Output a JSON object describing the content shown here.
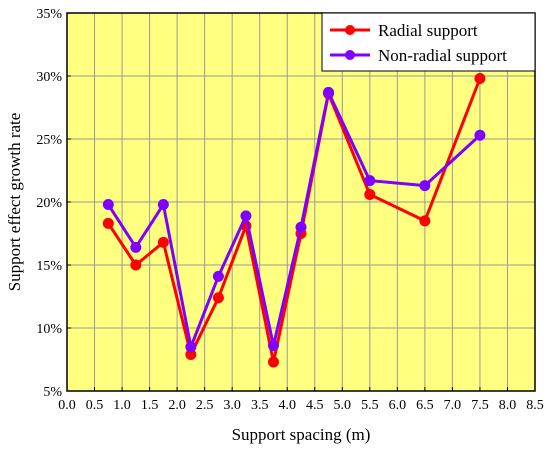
{
  "chart_data": {
    "type": "line",
    "xlabel": "Support spacing (m)",
    "ylabel": "Support effect growth rate",
    "xlim": [
      0.0,
      8.5
    ],
    "ylim": [
      5,
      35
    ],
    "xticks": [
      "0.0",
      "0.5",
      "1.0",
      "1.5",
      "2.0",
      "2.5",
      "3.0",
      "3.5",
      "4.0",
      "4.5",
      "5.0",
      "5.5",
      "6.0",
      "6.5",
      "7.0",
      "7.5",
      "8.0",
      "8.5"
    ],
    "yticks": [
      "5%",
      "10%",
      "15%",
      "20%",
      "25%",
      "30%",
      "35%"
    ],
    "grid": true,
    "legend_position": "top-right",
    "series": [
      {
        "name": "Radial support",
        "color": "#ff0000",
        "x": [
          0.75,
          1.25,
          1.75,
          2.25,
          2.75,
          3.25,
          3.75,
          4.25,
          4.75,
          5.5,
          6.5,
          7.5
        ],
        "values": [
          18.3,
          15.0,
          16.8,
          7.9,
          12.4,
          18.1,
          7.3,
          17.5,
          28.6,
          20.6,
          18.5,
          29.8
        ]
      },
      {
        "name": "Non-radial support",
        "color": "#7f00ff",
        "x": [
          0.75,
          1.25,
          1.75,
          2.25,
          2.75,
          3.25,
          3.75,
          4.25,
          4.75,
          5.5,
          6.5,
          7.5
        ],
        "values": [
          19.8,
          16.4,
          19.8,
          8.5,
          14.1,
          18.9,
          8.6,
          18.0,
          28.7,
          21.7,
          21.3,
          25.3
        ]
      }
    ],
    "colors": {
      "plot_background": "#ffff80",
      "grid": "#9a9a9a"
    }
  }
}
